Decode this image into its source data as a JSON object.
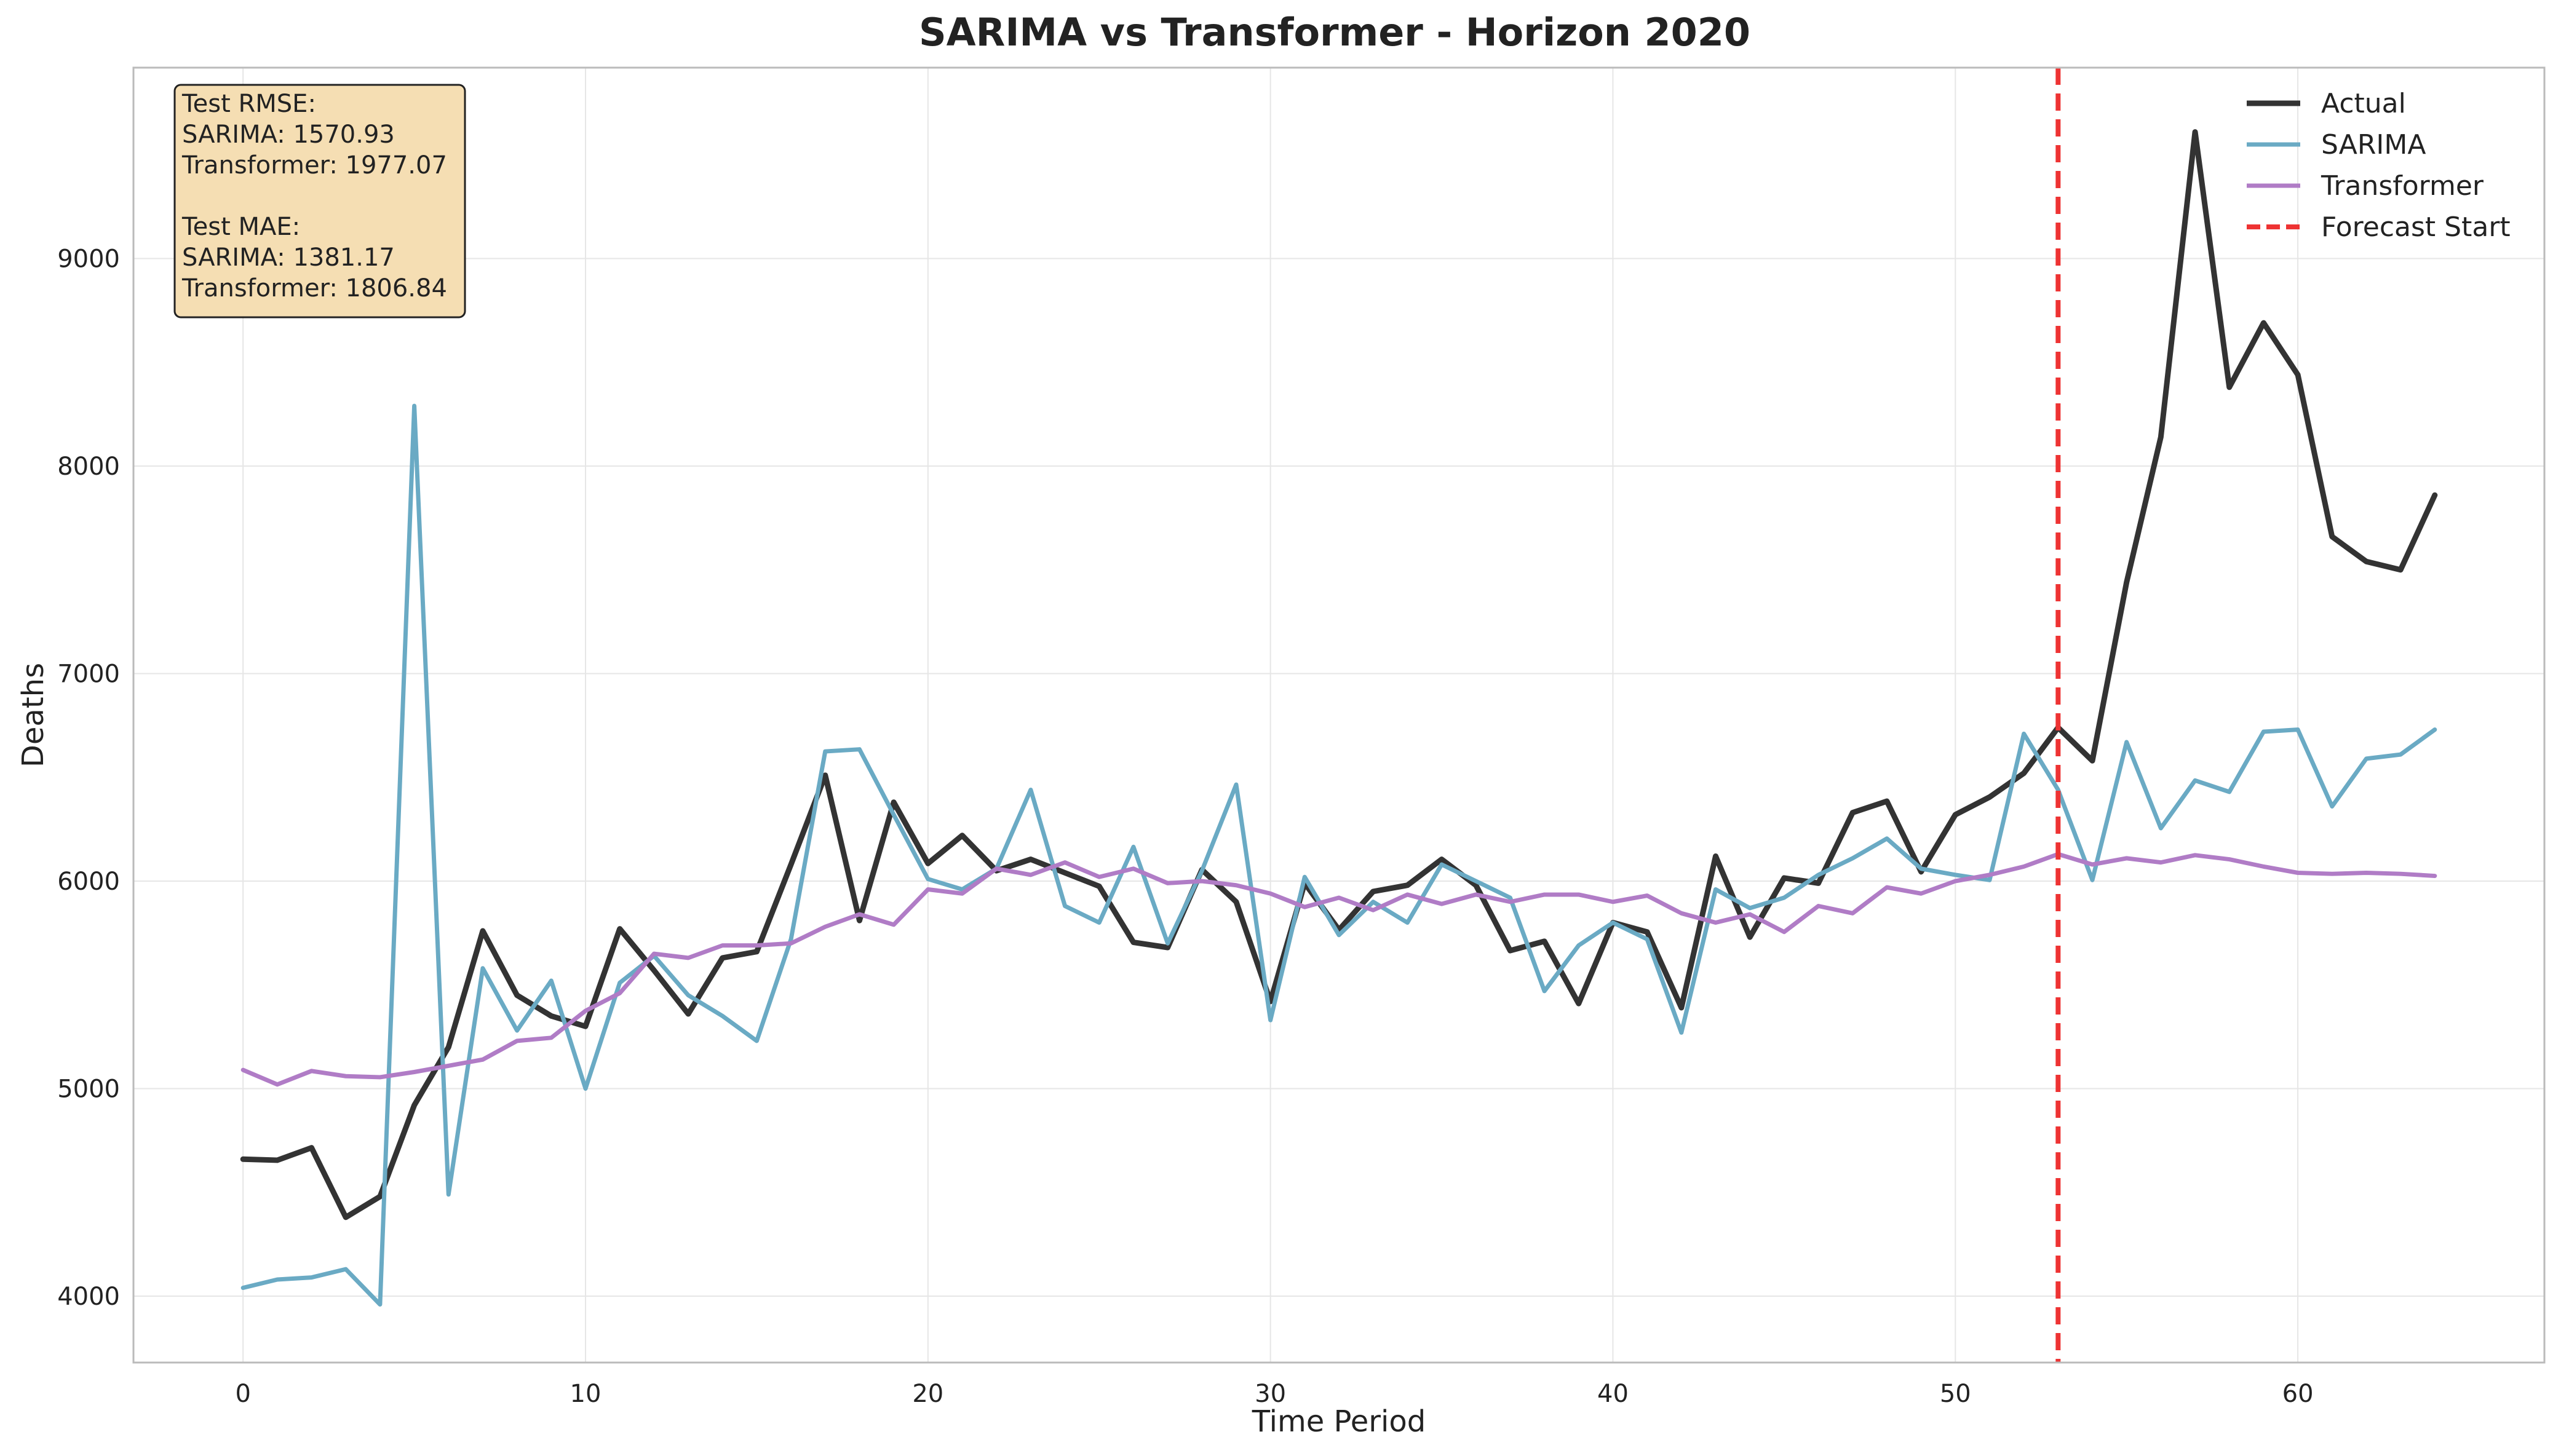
{
  "chart_data": {
    "type": "line",
    "title": "SARIMA vs Transformer - Horizon 2020",
    "xlabel": "Time Period",
    "ylabel": "Deaths",
    "xlim": [
      -3.2,
      67.2
    ],
    "ylim": [
      3680,
      9920
    ],
    "xticks": [
      0,
      10,
      20,
      30,
      40,
      50,
      60
    ],
    "yticks": [
      4000,
      5000,
      6000,
      7000,
      8000,
      9000
    ],
    "grid": true,
    "legend_position": "top-right",
    "x": [
      0,
      1,
      2,
      3,
      4,
      5,
      6,
      7,
      8,
      9,
      10,
      11,
      12,
      13,
      14,
      15,
      16,
      17,
      18,
      19,
      20,
      21,
      22,
      23,
      24,
      25,
      26,
      27,
      28,
      29,
      30,
      31,
      32,
      33,
      34,
      35,
      36,
      37,
      38,
      39,
      40,
      41,
      42,
      43,
      44,
      45,
      46,
      47,
      48,
      49,
      50,
      51,
      52,
      53,
      54,
      55,
      56,
      57,
      58,
      59,
      60,
      61,
      62,
      63,
      64
    ],
    "series": [
      {
        "name": "Actual",
        "color": "#333333",
        "style": "solid",
        "values": [
          4660,
          4655,
          4715,
          4380,
          4480,
          4920,
          5200,
          5760,
          5450,
          5350,
          5300,
          5770,
          5570,
          5360,
          5630,
          5660,
          6080,
          6510,
          5810,
          6380,
          6085,
          6220,
          6050,
          6105,
          6040,
          5975,
          5705,
          5680,
          6055,
          5900,
          5420,
          5990,
          5765,
          5950,
          5980,
          6105,
          5980,
          5665,
          5710,
          5410,
          5800,
          5755,
          5390,
          6120,
          5730,
          6015,
          5990,
          6330,
          6385,
          6045,
          6320,
          6405,
          6520,
          6740,
          6580,
          7440,
          8140,
          9610,
          8380,
          8690,
          8440,
          7660,
          7540,
          7500,
          7860
        ]
      },
      {
        "name": "SARIMA",
        "color": "#6aaac4",
        "style": "solid",
        "values": [
          4040,
          4080,
          4090,
          4130,
          3960,
          8290,
          4490,
          5580,
          5280,
          5520,
          5000,
          5510,
          5640,
          5450,
          5350,
          5230,
          5720,
          6625,
          6635,
          6320,
          6010,
          5960,
          6060,
          6440,
          5880,
          5800,
          6165,
          5700,
          6050,
          6465,
          5330,
          6020,
          5740,
          5900,
          5800,
          6080,
          6000,
          5920,
          5470,
          5690,
          5800,
          5720,
          5270,
          5960,
          5870,
          5920,
          6030,
          6110,
          6205,
          6060,
          6030,
          6005,
          6710,
          6440,
          6005,
          6670,
          6255,
          6485,
          6430,
          6720,
          6730,
          6360,
          6590,
          6610,
          6730
        ]
      },
      {
        "name": "Transformer",
        "color": "#b07cc6",
        "style": "solid",
        "values": [
          5090,
          5020,
          5085,
          5060,
          5055,
          5080,
          5110,
          5140,
          5230,
          5245,
          5375,
          5460,
          5650,
          5630,
          5690,
          5690,
          5700,
          5780,
          5840,
          5790,
          5960,
          5940,
          6060,
          6030,
          6090,
          6020,
          6060,
          5990,
          6000,
          5980,
          5940,
          5875,
          5920,
          5860,
          5935,
          5890,
          5935,
          5900,
          5935,
          5935,
          5900,
          5930,
          5845,
          5800,
          5840,
          5755,
          5880,
          5845,
          5970,
          5940,
          6000,
          6030,
          6070,
          6130,
          6080,
          6110,
          6090,
          6125,
          6105,
          6070,
          6040,
          6035,
          6040,
          6035,
          6025
        ]
      }
    ],
    "forecast_start": {
      "label": "Forecast Start",
      "x": 53,
      "color": "#ee3333",
      "style": "dashed"
    },
    "annotation": {
      "lines": [
        "Test RMSE:",
        "SARIMA: 1570.93",
        "Transformer: 1977.07",
        "",
        "Test MAE:",
        "SARIMA: 1381.17",
        "Transformer: 1806.84"
      ],
      "background": "#f5deb3",
      "border": "#222222"
    }
  }
}
